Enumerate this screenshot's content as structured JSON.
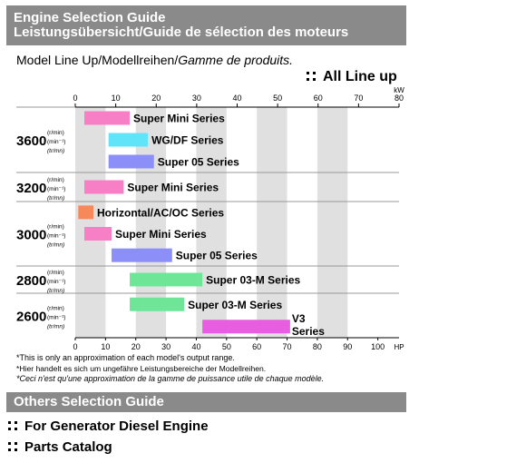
{
  "header": {
    "title_line1": "Engine Selection Guide",
    "title_line2": "Leistungsübersicht/Guide de sélection des moteurs"
  },
  "subtitle": {
    "part1": "Model Line Up/Modellreihen/",
    "part2": "Gamme de produits."
  },
  "all_line_up": "All Line up",
  "colors": {
    "header_bg": "#8a8a8a",
    "band": "#e0e0e0",
    "pink": "#f77fc6",
    "cyan": "#5fe4fa",
    "blue": "#8b8ff7",
    "orange": "#f7885a",
    "green": "#6ee597",
    "magenta": "#e75ee0"
  },
  "chart_data": {
    "type": "bar",
    "orientation": "horizontal-range",
    "xlabel_top": "kW",
    "xlabel_bottom": "HP",
    "top_ticks": [
      "0",
      "10",
      "20",
      "30",
      "40",
      "50",
      "60",
      "70",
      "80"
    ],
    "bottom_ticks": [
      "0",
      "10",
      "20",
      "30",
      "40",
      "50",
      "60",
      "70",
      "80",
      "90",
      "100"
    ],
    "xlim_hp": [
      0,
      107
    ],
    "grid_bands": true,
    "rpm_unit_lines": [
      "(r/min)",
      "(min⁻¹)",
      "(tr/mn)"
    ],
    "groups": [
      {
        "rpm": "3600",
        "series": [
          {
            "name": "Super Mini Series",
            "hp_range": [
              3,
              18
            ],
            "color": "pink"
          },
          {
            "name": "WG/DF Series",
            "hp_range": [
              11,
              24
            ],
            "color": "cyan"
          },
          {
            "name": "Super 05 Series",
            "hp_range": [
              11,
              26
            ],
            "color": "blue"
          }
        ]
      },
      {
        "rpm": "3200",
        "series": [
          {
            "name": "Super Mini Series",
            "hp_range": [
              3,
              16
            ],
            "color": "pink"
          }
        ]
      },
      {
        "rpm": "3000",
        "series": [
          {
            "name": "Horizontal/AC/OC Series",
            "hp_range": [
              1,
              6
            ],
            "color": "orange"
          },
          {
            "name": "Super Mini Series",
            "hp_range": [
              3,
              12
            ],
            "color": "pink"
          },
          {
            "name": "Super 05 Series",
            "hp_range": [
              12,
              32
            ],
            "color": "blue"
          }
        ]
      },
      {
        "rpm": "2800",
        "series": [
          {
            "name": "Super 03-M Series",
            "hp_range": [
              18,
              42
            ],
            "color": "green"
          }
        ]
      },
      {
        "rpm": "2600",
        "series": [
          {
            "name": "Super 03-M Series",
            "hp_range": [
              18,
              36
            ],
            "color": "green"
          },
          {
            "name": "V3 Series",
            "hp_range": [
              42,
              71
            ],
            "color": "magenta"
          }
        ]
      }
    ]
  },
  "footnotes": [
    "*This is only an approximation of each model's output range.",
    "*Hier handelt es sich um ungefähre Leistungsbereiche der Modellreihen.",
    "*Ceci n'est qu'une approximation de la gamme de puissance utile de chaque modèle."
  ],
  "others": {
    "title": "Others Selection Guide",
    "links": [
      "For Generator Diesel Engine",
      "Parts Catalog"
    ]
  }
}
